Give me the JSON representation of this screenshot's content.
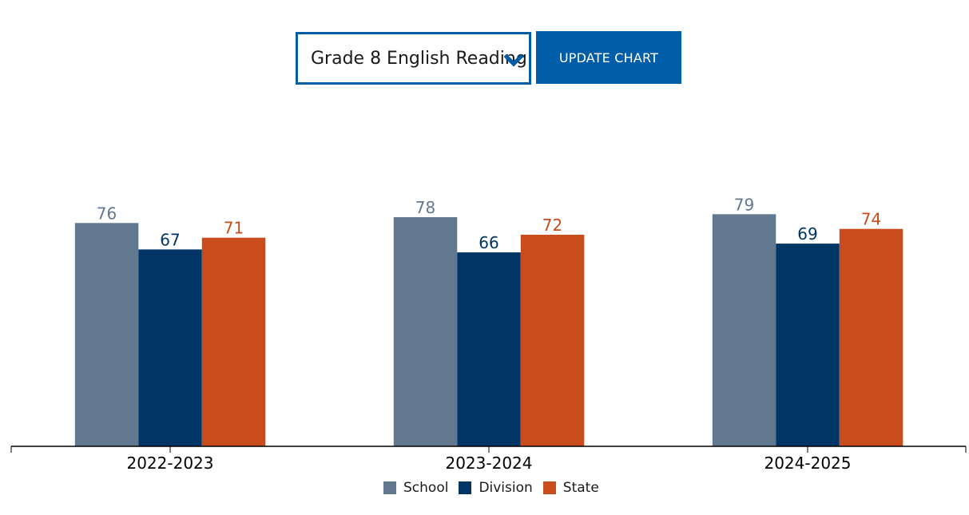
{
  "controls": {
    "select_value": "Grade 8 English Reading",
    "update_label": "UPDATE CHART"
  },
  "colors": {
    "school": "#62788f",
    "division": "#003566",
    "state": "#c94c1c",
    "accent": "#005da8"
  },
  "chart_data": {
    "type": "bar",
    "categories": [
      "2022-2023",
      "2023-2024",
      "2024-2025"
    ],
    "series": [
      {
        "name": "School",
        "values": [
          76,
          78,
          79
        ],
        "color": "#62788f"
      },
      {
        "name": "Division",
        "values": [
          67,
          66,
          69
        ],
        "color": "#003566"
      },
      {
        "name": "State",
        "values": [
          71,
          72,
          74
        ],
        "color": "#c94c1c"
      }
    ],
    "title": "",
    "xlabel": "",
    "ylabel": "",
    "ylim": [
      0,
      100
    ],
    "grid": false,
    "legend": "bottom-center",
    "data_labels": true
  }
}
